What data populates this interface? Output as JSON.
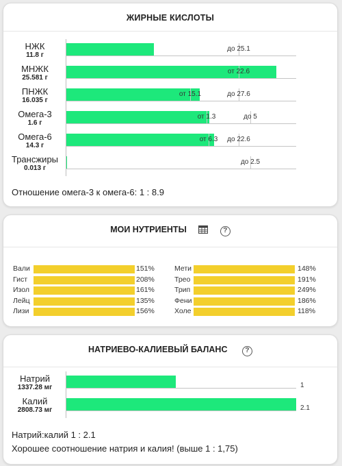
{
  "fatty_acids": {
    "title": "ЖИРНЫЕ КИСЛОТЫ",
    "rows": [
      {
        "name": "НЖК",
        "amount": "11.8 г",
        "fill": 0.38,
        "markers": [
          {
            "text": "до 25.1",
            "pos": 0.75
          }
        ]
      },
      {
        "name": "МНЖК",
        "amount": "25.581 г",
        "fill": 0.91,
        "markers": [
          {
            "text": "от 22.6",
            "pos": 0.75
          }
        ]
      },
      {
        "name": "ПНЖК",
        "amount": "16.035 г",
        "fill": 0.58,
        "markers": [
          {
            "text": "от 15.1",
            "pos": 0.54
          },
          {
            "text": "до 27.6",
            "pos": 0.75
          }
        ]
      },
      {
        "name": "Омега-3",
        "amount": "1.6 г",
        "fill": 0.62,
        "markers": [
          {
            "text": "от 1.3",
            "pos": 0.61
          },
          {
            "text": "до 5",
            "pos": 0.8
          }
        ]
      },
      {
        "name": "Омега-6",
        "amount": "14.3 г",
        "fill": 0.64,
        "markers": [
          {
            "text": "от 6.3",
            "pos": 0.62
          },
          {
            "text": "до 22.6",
            "pos": 0.75
          }
        ]
      },
      {
        "name": "Трансжиры",
        "amount": "0.013 г",
        "fill": 0.002,
        "markers": [
          {
            "text": "до 2.5",
            "pos": 0.8
          }
        ]
      }
    ],
    "ratio_text": "Отношение омега-3 к омега-6: 1 : 8.9"
  },
  "nutrients": {
    "title": "МОИ НУТРИЕНТЫ",
    "grid_icon": "table-grid-icon",
    "help_icon": "help-circle-icon",
    "help_symbol": "?",
    "left": [
      {
        "name": "Вали",
        "pct": "151%",
        "fill": 1.0
      },
      {
        "name": "Гист",
        "pct": "208%",
        "fill": 1.0
      },
      {
        "name": "Изол",
        "pct": "161%",
        "fill": 1.0
      },
      {
        "name": "Лейц",
        "pct": "135%",
        "fill": 1.0
      },
      {
        "name": "Лизи",
        "pct": "156%",
        "fill": 1.0
      }
    ],
    "right": [
      {
        "name": "Мети",
        "pct": "148%",
        "fill": 1.0
      },
      {
        "name": "Трео",
        "pct": "191%",
        "fill": 1.0
      },
      {
        "name": "Трип",
        "pct": "249%",
        "fill": 1.0
      },
      {
        "name": "Фени",
        "pct": "186%",
        "fill": 1.0
      },
      {
        "name": "Холе",
        "pct": "118%",
        "fill": 1.0
      }
    ]
  },
  "sodium_potassium": {
    "title": "НАТРИЕВО-КАЛИЕВЫЙ БАЛАНС",
    "help_icon": "help-circle-icon",
    "help_symbol": "?",
    "rows": [
      {
        "name": "Натрий",
        "amount": "1337.28 мг",
        "fill": 0.476,
        "value_label": "1"
      },
      {
        "name": "Калий",
        "amount": "2808.73 мг",
        "fill": 1.0,
        "value_label": "2.1"
      }
    ],
    "ratio_text": "Натрий:калий 1 : 2.1",
    "comment_text": "Хорошее соотношение натрия и калия! (выше 1 : 1,75)"
  },
  "colors": {
    "green_bar": "#1de87b",
    "yellow_bar": "#f3cf2c",
    "card_bg": "#ffffff",
    "page_bg": "#ececec"
  }
}
